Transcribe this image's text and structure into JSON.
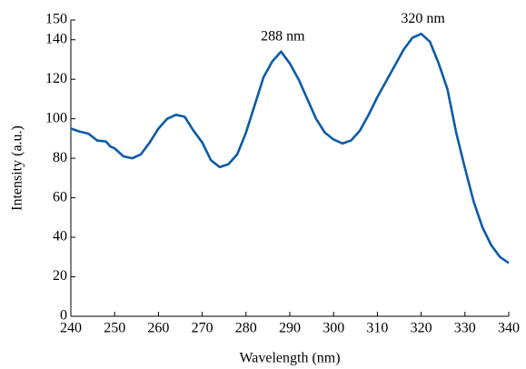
{
  "chart_data": {
    "type": "line",
    "x_label": "Wavelength (nm)",
    "y_label": "Intensity (a.u.)",
    "x": [
      240,
      242,
      244,
      246,
      248,
      249,
      250,
      252,
      254,
      256,
      258,
      260,
      262,
      264,
      266,
      268,
      270,
      272,
      274,
      276,
      278,
      280,
      282,
      284,
      286,
      288,
      290,
      292,
      294,
      296,
      298,
      300,
      302,
      304,
      306,
      308,
      310,
      312,
      314,
      316,
      318,
      320,
      322,
      324,
      326,
      328,
      330,
      332,
      334,
      336,
      338,
      340
    ],
    "series": [
      {
        "color": "#0d5ba6",
        "values": [
          95,
          93.5,
          92.5,
          89,
          88.5,
          86,
          85,
          81,
          80,
          82,
          88,
          95,
          100,
          102,
          101,
          94,
          88,
          79,
          75.5,
          77,
          82,
          93,
          107,
          121,
          129,
          134,
          128,
          120,
          110,
          100,
          93,
          89.5,
          87.5,
          89,
          94,
          102,
          111,
          119,
          127,
          135,
          141,
          143,
          139,
          128,
          115,
          93,
          75,
          58,
          45,
          36,
          30,
          27
        ]
      }
    ],
    "annotations": [
      {
        "text": "288 nm",
        "x": 288
      },
      {
        "text": "320 nm",
        "x": 320
      }
    ],
    "xlim": [
      240,
      340
    ],
    "xticks": [
      240,
      250,
      260,
      270,
      280,
      290,
      300,
      310,
      320,
      330,
      340
    ],
    "ylim": [
      0,
      150
    ],
    "yticks": [
      0,
      20,
      40,
      60,
      80,
      100,
      120,
      140,
      150
    ]
  }
}
